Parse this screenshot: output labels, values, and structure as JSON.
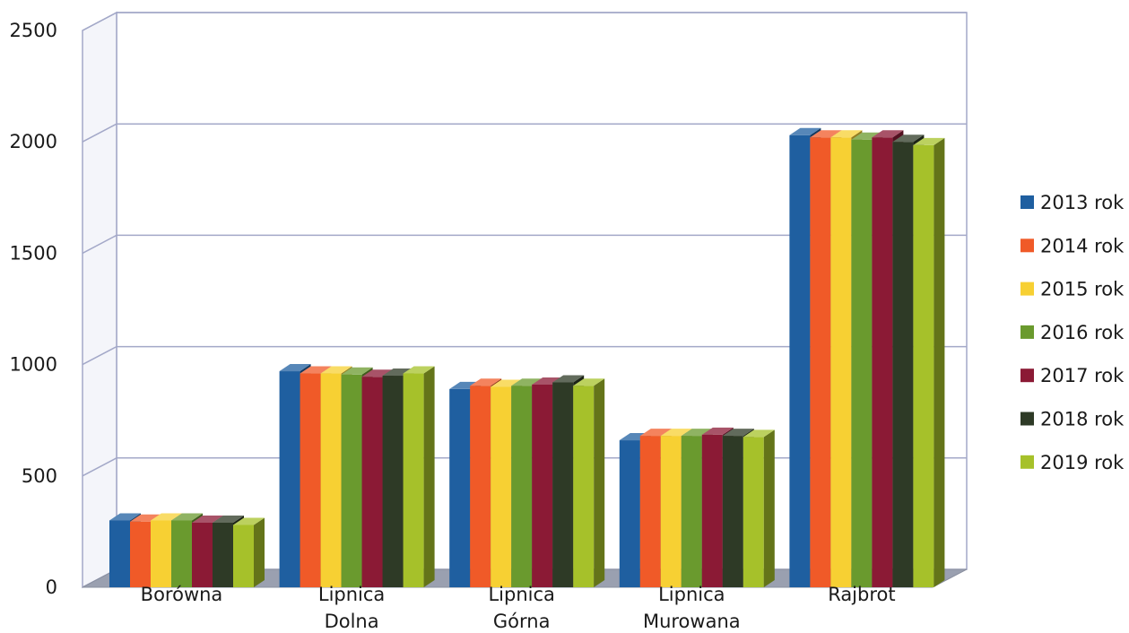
{
  "chart_data": {
    "type": "bar",
    "title": "",
    "xlabel": "",
    "ylabel": "",
    "ylim": [
      0,
      2500
    ],
    "yticks": [
      0,
      500,
      1000,
      1500,
      2000,
      2500
    ],
    "grid": true,
    "legend_position": "right",
    "categories": [
      [
        "Borówna"
      ],
      [
        "Lipnica",
        "Dolna"
      ],
      [
        "Lipnica",
        "Górna"
      ],
      [
        "Lipnica",
        "Murowana"
      ],
      [
        "Rajbrot"
      ]
    ],
    "series": [
      {
        "name": "2013 rok",
        "color": "#1f5fa0",
        "values": [
          300,
          970,
          890,
          660,
          2030
        ]
      },
      {
        "name": "2014 rok",
        "color": "#f05a28",
        "values": [
          295,
          960,
          905,
          680,
          2020
        ]
      },
      {
        "name": "2015 rok",
        "color": "#f7d033",
        "values": [
          300,
          960,
          900,
          680,
          2020
        ]
      },
      {
        "name": "2016 rok",
        "color": "#6a9a2e",
        "values": [
          300,
          955,
          905,
          680,
          2010
        ]
      },
      {
        "name": "2017 rok",
        "color": "#8b1a35",
        "values": [
          290,
          945,
          910,
          685,
          2020
        ]
      },
      {
        "name": "2018 rok",
        "color": "#2e3a26",
        "values": [
          290,
          950,
          920,
          680,
          2000
        ]
      },
      {
        "name": "2019 rok",
        "color": "#a6c12a",
        "values": [
          280,
          960,
          905,
          675,
          1985
        ]
      }
    ]
  }
}
